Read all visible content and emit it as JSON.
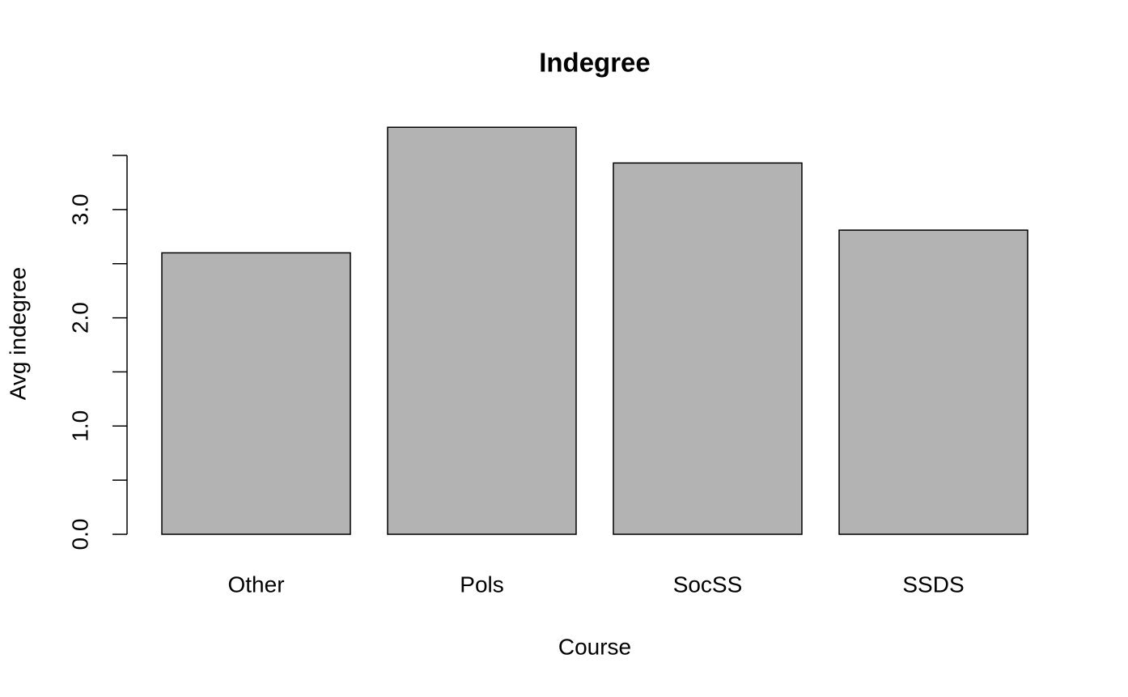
{
  "chart_data": {
    "type": "bar",
    "title": "Indegree",
    "x_label": "Course",
    "y_label": "Avg indegree",
    "categories": [
      "Other",
      "Pols",
      "SocSS",
      "SSDS"
    ],
    "values": [
      2.6,
      3.76,
      3.43,
      2.81
    ],
    "color": "#b3b3b3",
    "ylim": [
      0,
      3.5
    ],
    "yticks": [
      {
        "value": 0,
        "label": "0.0"
      },
      {
        "value": 1,
        "label": "1.0"
      },
      {
        "value": 2,
        "label": "2.0"
      },
      {
        "value": 3,
        "label": "3.0"
      }
    ],
    "yminor_ticks": [
      0.5,
      1.5,
      2.5,
      3.5
    ],
    "grid": false
  }
}
